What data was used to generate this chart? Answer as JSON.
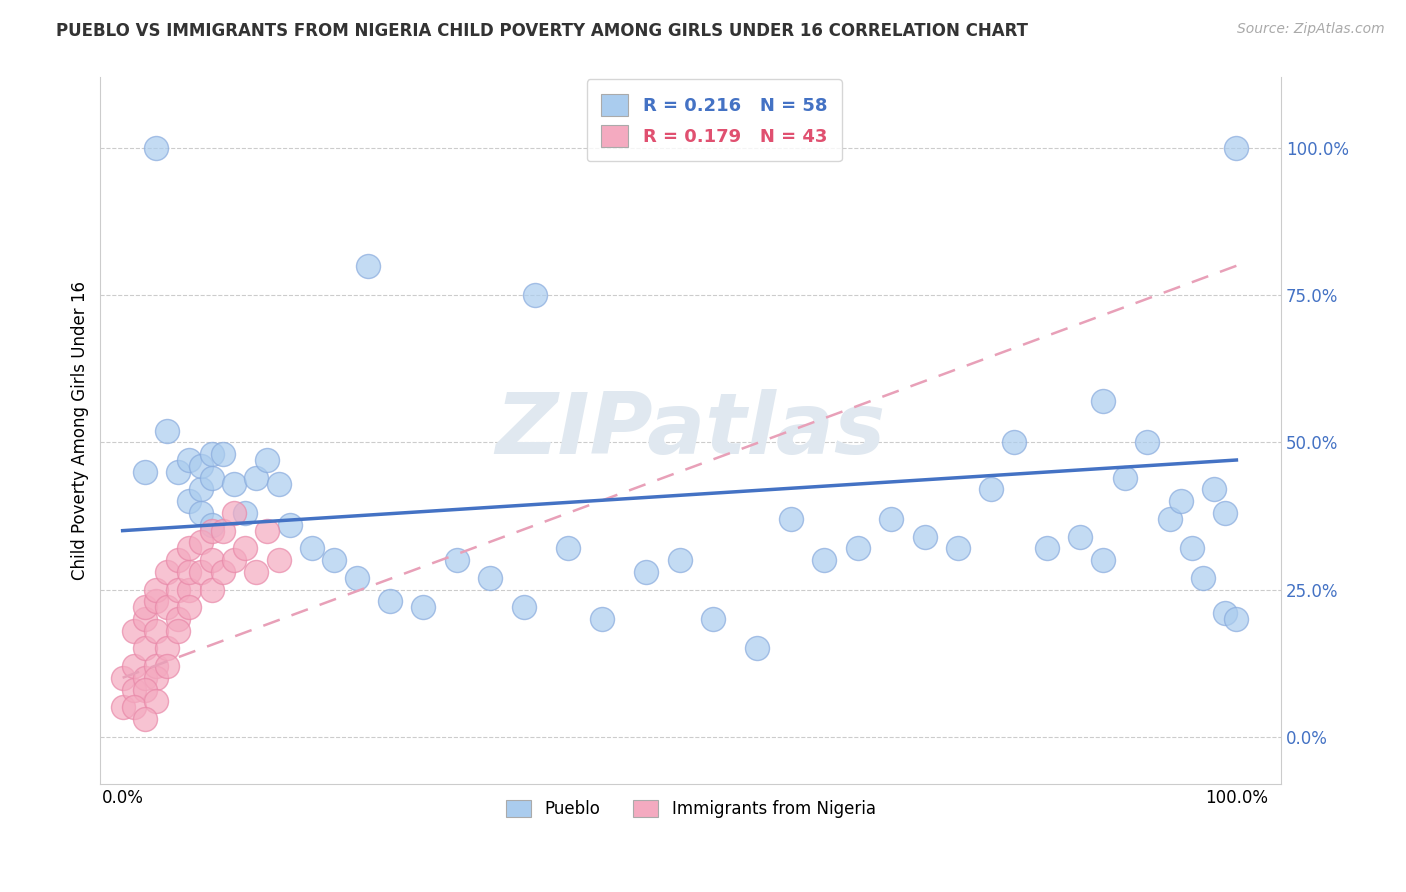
{
  "title": "PUEBLO VS IMMIGRANTS FROM NIGERIA CHILD POVERTY AMONG GIRLS UNDER 16 CORRELATION CHART",
  "source": "Source: ZipAtlas.com",
  "ylabel": "Child Poverty Among Girls Under 16",
  "ytick_values": [
    0,
    25,
    50,
    75,
    100
  ],
  "pueblo_color": "#aaccee",
  "nigeria_color": "#f4aac0",
  "pueblo_edge_color": "#88aadd",
  "nigeria_edge_color": "#e888a8",
  "pueblo_line_color": "#4472c4",
  "nigeria_line_color": "#e8a0b8",
  "pueblo_R": 0.216,
  "pueblo_N": 58,
  "nigeria_R": 0.179,
  "nigeria_N": 43,
  "watermark": "ZIPatlas",
  "title_fontsize": 12,
  "source_fontsize": 10,
  "tick_fontsize": 12,
  "ylabel_fontsize": 12,
  "legend_fontsize": 13,
  "pueblo_x": [
    2,
    3,
    4,
    5,
    6,
    6,
    7,
    7,
    7,
    8,
    8,
    8,
    9,
    10,
    11,
    12,
    13,
    14,
    15,
    17,
    19,
    21,
    24,
    27,
    30,
    33,
    36,
    40,
    43,
    47,
    50,
    53,
    57,
    60,
    63,
    66,
    69,
    72,
    75,
    78,
    80,
    83,
    86,
    88,
    90,
    92,
    94,
    95,
    96,
    97,
    98,
    99,
    99,
    100,
    100,
    22,
    37,
    88
  ],
  "pueblo_y": [
    45,
    100,
    52,
    45,
    47,
    40,
    42,
    38,
    46,
    48,
    44,
    36,
    48,
    43,
    38,
    44,
    47,
    43,
    36,
    32,
    30,
    27,
    23,
    22,
    30,
    27,
    22,
    32,
    20,
    28,
    30,
    20,
    15,
    37,
    30,
    32,
    37,
    34,
    32,
    42,
    50,
    32,
    34,
    30,
    44,
    50,
    37,
    40,
    32,
    27,
    42,
    38,
    21,
    20,
    100,
    80,
    75,
    57
  ],
  "nigeria_x": [
    0,
    0,
    1,
    1,
    1,
    2,
    2,
    2,
    2,
    3,
    3,
    3,
    3,
    4,
    4,
    4,
    5,
    5,
    5,
    6,
    6,
    6,
    7,
    7,
    8,
    8,
    8,
    9,
    9,
    10,
    10,
    11,
    12,
    13,
    14,
    6,
    5,
    3,
    2,
    1,
    4,
    3,
    2
  ],
  "nigeria_y": [
    5,
    10,
    8,
    12,
    18,
    10,
    15,
    20,
    22,
    12,
    18,
    23,
    25,
    22,
    15,
    28,
    20,
    25,
    30,
    25,
    28,
    32,
    28,
    33,
    30,
    25,
    35,
    28,
    35,
    30,
    38,
    32,
    28,
    35,
    30,
    22,
    18,
    10,
    8,
    5,
    12,
    6,
    3
  ]
}
